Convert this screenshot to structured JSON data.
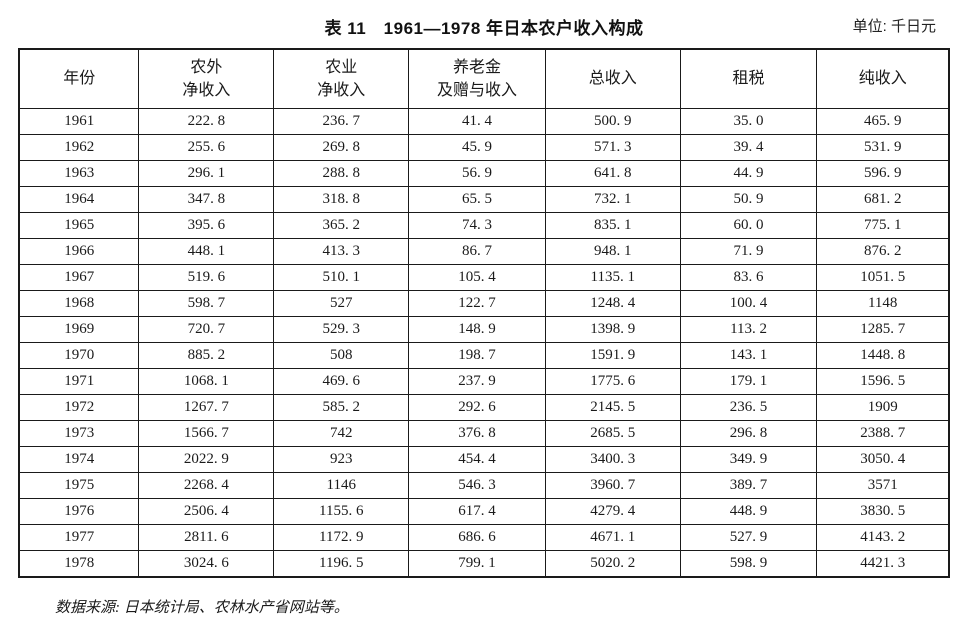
{
  "header": {
    "title": "表 11　1961—1978 年日本农户收入构成",
    "unit": "单位: 千日元"
  },
  "table": {
    "columns": [
      "年份",
      "农外\n净收入",
      "农业\n净收入",
      "养老金\n及赠与收入",
      "总收入",
      "租税",
      "纯收入"
    ],
    "rows": [
      [
        "1961",
        "222. 8",
        "236. 7",
        "41. 4",
        "500. 9",
        "35. 0",
        "465. 9"
      ],
      [
        "1962",
        "255. 6",
        "269. 8",
        "45. 9",
        "571. 3",
        "39. 4",
        "531. 9"
      ],
      [
        "1963",
        "296. 1",
        "288. 8",
        "56. 9",
        "641. 8",
        "44. 9",
        "596. 9"
      ],
      [
        "1964",
        "347. 8",
        "318. 8",
        "65. 5",
        "732. 1",
        "50. 9",
        "681. 2"
      ],
      [
        "1965",
        "395. 6",
        "365. 2",
        "74. 3",
        "835. 1",
        "60. 0",
        "775. 1"
      ],
      [
        "1966",
        "448. 1",
        "413. 3",
        "86. 7",
        "948. 1",
        "71. 9",
        "876. 2"
      ],
      [
        "1967",
        "519. 6",
        "510. 1",
        "105. 4",
        "1135. 1",
        "83. 6",
        "1051. 5"
      ],
      [
        "1968",
        "598. 7",
        "527",
        "122. 7",
        "1248. 4",
        "100. 4",
        "1148"
      ],
      [
        "1969",
        "720. 7",
        "529. 3",
        "148. 9",
        "1398. 9",
        "113. 2",
        "1285. 7"
      ],
      [
        "1970",
        "885. 2",
        "508",
        "198. 7",
        "1591. 9",
        "143. 1",
        "1448. 8"
      ],
      [
        "1971",
        "1068. 1",
        "469. 6",
        "237. 9",
        "1775. 6",
        "179. 1",
        "1596. 5"
      ],
      [
        "1972",
        "1267. 7",
        "585. 2",
        "292. 6",
        "2145. 5",
        "236. 5",
        "1909"
      ],
      [
        "1973",
        "1566. 7",
        "742",
        "376. 8",
        "2685. 5",
        "296. 8",
        "2388. 7"
      ],
      [
        "1974",
        "2022. 9",
        "923",
        "454. 4",
        "3400. 3",
        "349. 9",
        "3050. 4"
      ],
      [
        "1975",
        "2268. 4",
        "1146",
        "546. 3",
        "3960. 7",
        "389. 7",
        "3571"
      ],
      [
        "1976",
        "2506. 4",
        "1155. 6",
        "617. 4",
        "4279. 4",
        "448. 9",
        "3830. 5"
      ],
      [
        "1977",
        "2811. 6",
        "1172. 9",
        "686. 6",
        "4671. 1",
        "527. 9",
        "4143. 2"
      ],
      [
        "1978",
        "3024. 6",
        "1196. 5",
        "799. 1",
        "5020. 2",
        "598. 9",
        "4421. 3"
      ]
    ]
  },
  "footer": {
    "note": "数据来源: 日本统计局、农林水产省网站等。"
  }
}
